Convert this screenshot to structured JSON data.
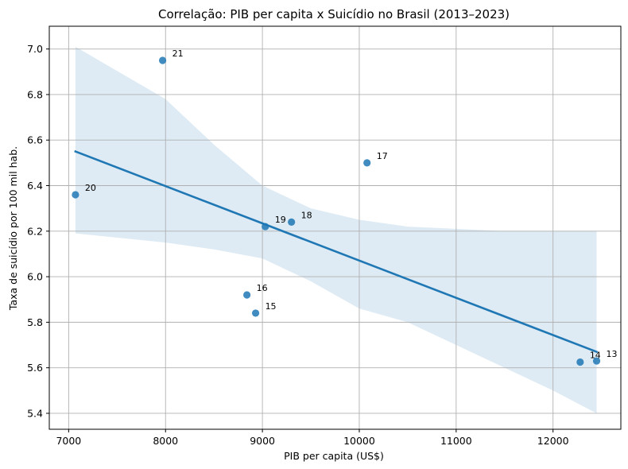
{
  "chart_data": {
    "type": "scatter",
    "title": "Correlação: PIB per capita x Suicídio no Brasil (2013–2023)",
    "xlabel": "PIB per capita (US$)",
    "ylabel": "Taxa de suicídio por 100 mil hab.",
    "xlim": [
      6800,
      12700
    ],
    "ylim": [
      5.33,
      7.1
    ],
    "xticks": [
      7000,
      8000,
      9000,
      10000,
      11000,
      12000
    ],
    "yticks": [
      5.4,
      5.6,
      5.8,
      6.0,
      6.2,
      6.4,
      6.6,
      6.8,
      7.0
    ],
    "grid": true,
    "points": [
      {
        "label": "13",
        "x": 12450,
        "y": 5.63
      },
      {
        "label": "14",
        "x": 12280,
        "y": 5.625
      },
      {
        "label": "15",
        "x": 8930,
        "y": 5.84
      },
      {
        "label": "16",
        "x": 8840,
        "y": 5.92
      },
      {
        "label": "17",
        "x": 10080,
        "y": 6.5
      },
      {
        "label": "18",
        "x": 9300,
        "y": 6.24
      },
      {
        "label": "19",
        "x": 9030,
        "y": 6.22
      },
      {
        "label": "20",
        "x": 7070,
        "y": 6.36
      },
      {
        "label": "21",
        "x": 7970,
        "y": 6.95
      }
    ],
    "regression": {
      "x": [
        7070,
        12450
      ],
      "y": [
        6.55,
        5.67
      ]
    },
    "confidence_band": {
      "x": [
        7070,
        8000,
        8500,
        9000,
        9500,
        10000,
        10500,
        11000,
        11500,
        12000,
        12450
      ],
      "upper": [
        7.01,
        6.78,
        6.58,
        6.4,
        6.3,
        6.25,
        6.22,
        6.21,
        6.2,
        6.2,
        6.2
      ],
      "lower": [
        6.19,
        6.15,
        6.12,
        6.08,
        5.98,
        5.86,
        5.8,
        5.7,
        5.6,
        5.5,
        5.4
      ]
    },
    "colors": {
      "point": "#1f77b4",
      "line": "#1f77b4",
      "band": "#1f77b4",
      "grid": "#b0b0b0"
    }
  }
}
